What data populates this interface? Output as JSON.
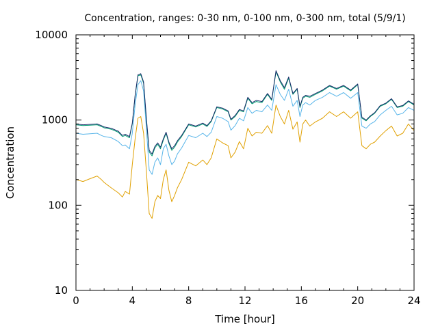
{
  "chart_data": {
    "type": "line",
    "title": "Concentration, ranges: 0-30 nm, 0-100 nm, 0-300 nm, total (5/9/1)",
    "xlabel": "Time [hour]",
    "ylabel": "Concentration",
    "xlim": [
      0,
      24
    ],
    "ylim": [
      10,
      10000
    ],
    "yscale": "log",
    "grid": false,
    "legend": "none",
    "xticks": [
      0,
      4,
      8,
      12,
      16,
      20,
      24
    ],
    "xtick_labels": [
      "0",
      "4",
      "8",
      "12",
      "16",
      "20",
      "24"
    ],
    "yticks": [
      10,
      100,
      1000,
      10000
    ],
    "ytick_labels": [
      "10",
      "100",
      "1000",
      "10000"
    ],
    "series": [
      {
        "color": "#e0a000",
        "x": [
          0,
          0.5,
          1,
          1.5,
          1.8,
          2,
          2.5,
          3,
          3.3,
          3.5,
          3.8,
          4,
          4.2,
          4.4,
          4.6,
          4.8,
          5.0,
          5.2,
          5.4,
          5.6,
          5.8,
          6.0,
          6.2,
          6.4,
          6.6,
          6.8,
          7.0,
          7.2,
          7.5,
          8.0,
          8.5,
          9.0,
          9.3,
          9.6,
          10.0,
          10.4,
          10.8,
          11.0,
          11.3,
          11.6,
          11.9,
          12.2,
          12.5,
          12.8,
          13.2,
          13.6,
          13.9,
          14.2,
          14.5,
          14.8,
          15.1,
          15.4,
          15.7,
          15.9,
          16.1,
          16.3,
          16.6,
          17.0,
          17.5,
          18.0,
          18.5,
          19.0,
          19.5,
          20.0,
          20.3,
          20.6,
          20.9,
          21.2,
          21.6,
          22.0,
          22.4,
          22.8,
          23.2,
          23.6,
          24.0
        ],
        "y": [
          200,
          190,
          205,
          220,
          200,
          185,
          160,
          140,
          125,
          145,
          135,
          300,
          600,
          1050,
          1100,
          700,
          250,
          80,
          70,
          110,
          130,
          120,
          200,
          260,
          150,
          110,
          130,
          160,
          200,
          320,
          290,
          340,
          300,
          360,
          600,
          540,
          500,
          360,
          420,
          560,
          460,
          800,
          650,
          720,
          700,
          860,
          700,
          1500,
          1100,
          900,
          1300,
          780,
          950,
          550,
          900,
          1000,
          850,
          950,
          1050,
          1250,
          1100,
          1250,
          1050,
          1250,
          500,
          460,
          520,
          550,
          650,
          750,
          850,
          650,
          700,
          900,
          750
        ]
      },
      {
        "color": "#56b4e9",
        "x": [
          0,
          0.5,
          1,
          1.5,
          1.8,
          2,
          2.5,
          3,
          3.3,
          3.5,
          3.8,
          4,
          4.2,
          4.4,
          4.6,
          4.8,
          5.0,
          5.2,
          5.4,
          5.6,
          5.8,
          6.0,
          6.2,
          6.4,
          6.6,
          6.8,
          7.0,
          7.2,
          7.5,
          8.0,
          8.5,
          9.0,
          9.3,
          9.6,
          10.0,
          10.4,
          10.8,
          11.0,
          11.3,
          11.6,
          11.9,
          12.2,
          12.5,
          12.8,
          13.2,
          13.6,
          13.9,
          14.2,
          14.5,
          14.8,
          15.1,
          15.4,
          15.7,
          15.9,
          16.1,
          16.3,
          16.6,
          17.0,
          17.5,
          18.0,
          18.5,
          19.0,
          19.5,
          20.0,
          20.3,
          20.6,
          20.9,
          21.2,
          21.6,
          22.0,
          22.4,
          22.8,
          23.2,
          23.6,
          24.0
        ],
        "y": [
          700,
          680,
          690,
          700,
          660,
          640,
          620,
          560,
          500,
          510,
          460,
          700,
          1500,
          2600,
          2900,
          2200,
          800,
          260,
          230,
          320,
          360,
          300,
          460,
          520,
          380,
          300,
          330,
          400,
          470,
          660,
          620,
          700,
          640,
          720,
          1100,
          1050,
          960,
          760,
          860,
          1050,
          980,
          1400,
          1200,
          1300,
          1250,
          1500,
          1300,
          2600,
          2000,
          1700,
          2300,
          1450,
          1700,
          1100,
          1500,
          1600,
          1500,
          1700,
          1850,
          2100,
          1900,
          2100,
          1800,
          2100,
          850,
          800,
          900,
          960,
          1150,
          1300,
          1450,
          1150,
          1200,
          1400,
          1300
        ]
      },
      {
        "color": "#009e73",
        "x": [
          0,
          0.5,
          1,
          1.5,
          1.8,
          2,
          2.5,
          3,
          3.3,
          3.5,
          3.8,
          4,
          4.2,
          4.4,
          4.6,
          4.8,
          5.0,
          5.2,
          5.4,
          5.6,
          5.8,
          6.0,
          6.2,
          6.4,
          6.6,
          6.8,
          7.0,
          7.2,
          7.5,
          8.0,
          8.5,
          9.0,
          9.3,
          9.6,
          10.0,
          10.4,
          10.8,
          11.0,
          11.3,
          11.6,
          11.9,
          12.2,
          12.5,
          12.8,
          13.2,
          13.6,
          13.9,
          14.2,
          14.5,
          14.8,
          15.1,
          15.4,
          15.7,
          15.9,
          16.1,
          16.3,
          16.6,
          17.0,
          17.5,
          18.0,
          18.5,
          19.0,
          19.5,
          20.0,
          20.3,
          20.6,
          20.9,
          21.2,
          21.6,
          22.0,
          22.4,
          22.8,
          23.2,
          23.6,
          24.0
        ],
        "y": [
          880,
          860,
          870,
          880,
          840,
          810,
          780,
          720,
          640,
          660,
          620,
          900,
          1900,
          3300,
          3400,
          2700,
          1000,
          420,
          380,
          470,
          520,
          460,
          580,
          700,
          530,
          440,
          480,
          550,
          640,
          880,
          830,
          900,
          840,
          960,
          1400,
          1350,
          1250,
          1000,
          1100,
          1300,
          1250,
          1800,
          1550,
          1650,
          1600,
          2000,
          1700,
          3700,
          2800,
          2300,
          3100,
          2000,
          2300,
          1400,
          1800,
          1900,
          1850,
          2000,
          2200,
          2500,
          2300,
          2500,
          2200,
          2600,
          1050,
          980,
          1100,
          1200,
          1450,
          1550,
          1750,
          1400,
          1450,
          1650,
          1500
        ]
      },
      {
        "color": "#1a2a6a",
        "x": [
          0,
          0.5,
          1,
          1.5,
          1.8,
          2,
          2.5,
          3,
          3.3,
          3.5,
          3.8,
          4,
          4.2,
          4.4,
          4.6,
          4.8,
          5.0,
          5.2,
          5.4,
          5.6,
          5.8,
          6.0,
          6.2,
          6.4,
          6.6,
          6.8,
          7.0,
          7.2,
          7.5,
          8.0,
          8.5,
          9.0,
          9.3,
          9.6,
          10.0,
          10.4,
          10.8,
          11.0,
          11.3,
          11.6,
          11.9,
          12.2,
          12.5,
          12.8,
          13.2,
          13.6,
          13.9,
          14.2,
          14.5,
          14.8,
          15.1,
          15.4,
          15.7,
          15.9,
          16.1,
          16.3,
          16.6,
          17.0,
          17.5,
          18.0,
          18.5,
          19.0,
          19.5,
          20.0,
          20.3,
          20.6,
          20.9,
          21.2,
          21.6,
          22.0,
          22.4,
          22.8,
          23.2,
          23.6,
          24.0
        ],
        "y": [
          900,
          880,
          890,
          900,
          860,
          830,
          800,
          740,
          660,
          680,
          640,
          920,
          1950,
          3400,
          3500,
          2800,
          1050,
          440,
          400,
          490,
          540,
          480,
          600,
          720,
          550,
          460,
          500,
          570,
          660,
          900,
          850,
          920,
          860,
          980,
          1430,
          1380,
          1280,
          1020,
          1130,
          1330,
          1280,
          1850,
          1600,
          1700,
          1650,
          2050,
          1750,
          3800,
          2900,
          2400,
          3200,
          2050,
          2350,
          1450,
          1850,
          1950,
          1900,
          2050,
          2250,
          2550,
          2350,
          2550,
          2250,
          2650,
          1080,
          1000,
          1120,
          1220,
          1480,
          1580,
          1780,
          1430,
          1480,
          1680,
          1530
        ]
      }
    ]
  }
}
